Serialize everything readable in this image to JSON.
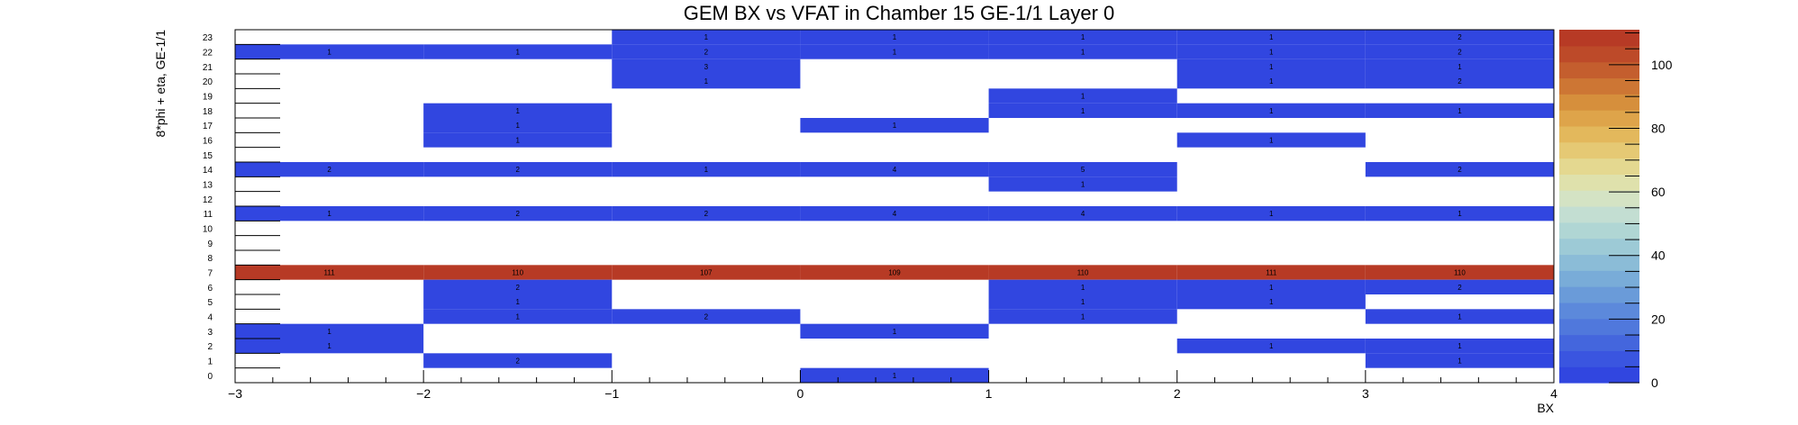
{
  "chart_data": {
    "type": "heatmap",
    "title": "GEM BX vs VFAT in Chamber 15 GE-1/1 Layer 0",
    "xlabel": "BX",
    "ylabel": "8*phi + eta, GE-1/1",
    "xlim": [
      -3,
      4
    ],
    "ylim": [
      0,
      24
    ],
    "x_tick_labels": [
      "−3",
      "−2",
      "−1",
      "0",
      "1",
      "2",
      "3",
      "4"
    ],
    "y_tick_labels": [
      "0",
      "1",
      "2",
      "3",
      "4",
      "5",
      "6",
      "7",
      "8",
      "9",
      "10",
      "11",
      "12",
      "13",
      "14",
      "15",
      "16",
      "17",
      "18",
      "19",
      "20",
      "21",
      "22",
      "23"
    ],
    "colorbar_ticks": [
      "0",
      "20",
      "40",
      "60",
      "80",
      "100"
    ],
    "zlim": [
      0,
      111
    ],
    "cells": [
      {
        "x": -2.5,
        "y": 22,
        "value": 1
      },
      {
        "x": -1.5,
        "y": 22,
        "value": 1
      },
      {
        "x": -0.5,
        "y": 23,
        "value": 1
      },
      {
        "x": -0.5,
        "y": 22,
        "value": 2
      },
      {
        "x": -0.5,
        "y": 21,
        "value": 3
      },
      {
        "x": -0.5,
        "y": 20,
        "value": 1
      },
      {
        "x": 0.5,
        "y": 23,
        "value": 1
      },
      {
        "x": 0.5,
        "y": 22,
        "value": 1
      },
      {
        "x": 1.5,
        "y": 23,
        "value": 1
      },
      {
        "x": 1.5,
        "y": 22,
        "value": 1
      },
      {
        "x": 1.5,
        "y": 19,
        "value": 1
      },
      {
        "x": 1.5,
        "y": 18,
        "value": 1
      },
      {
        "x": 2.5,
        "y": 23,
        "value": 1
      },
      {
        "x": 2.5,
        "y": 22,
        "value": 1
      },
      {
        "x": 2.5,
        "y": 21,
        "value": 1
      },
      {
        "x": 2.5,
        "y": 20,
        "value": 1
      },
      {
        "x": 2.5,
        "y": 18,
        "value": 1
      },
      {
        "x": 3.5,
        "y": 23,
        "value": 2
      },
      {
        "x": 3.5,
        "y": 22,
        "value": 2
      },
      {
        "x": 3.5,
        "y": 21,
        "value": 1
      },
      {
        "x": 3.5,
        "y": 20,
        "value": 2
      },
      {
        "x": 3.5,
        "y": 18,
        "value": 1
      },
      {
        "x": -1.5,
        "y": 18,
        "value": 1
      },
      {
        "x": -1.5,
        "y": 17,
        "value": 1
      },
      {
        "x": -1.5,
        "y": 16,
        "value": 1
      },
      {
        "x": 0.5,
        "y": 17,
        "value": 1
      },
      {
        "x": 2.5,
        "y": 16,
        "value": 1
      },
      {
        "x": -2.5,
        "y": 14,
        "value": 2
      },
      {
        "x": -1.5,
        "y": 14,
        "value": 2
      },
      {
        "x": -0.5,
        "y": 14,
        "value": 1
      },
      {
        "x": 0.5,
        "y": 14,
        "value": 4
      },
      {
        "x": 1.5,
        "y": 14,
        "value": 5
      },
      {
        "x": 3.5,
        "y": 14,
        "value": 2
      },
      {
        "x": 1.5,
        "y": 13,
        "value": 1
      },
      {
        "x": -2.5,
        "y": 11,
        "value": 1
      },
      {
        "x": -1.5,
        "y": 11,
        "value": 2
      },
      {
        "x": -0.5,
        "y": 11,
        "value": 2
      },
      {
        "x": 0.5,
        "y": 11,
        "value": 4
      },
      {
        "x": 1.5,
        "y": 11,
        "value": 4
      },
      {
        "x": 2.5,
        "y": 11,
        "value": 1
      },
      {
        "x": 3.5,
        "y": 11,
        "value": 1
      },
      {
        "x": -2.5,
        "y": 7,
        "value": 111
      },
      {
        "x": -1.5,
        "y": 7,
        "value": 110
      },
      {
        "x": -0.5,
        "y": 7,
        "value": 107
      },
      {
        "x": 0.5,
        "y": 7,
        "value": 109
      },
      {
        "x": 1.5,
        "y": 7,
        "value": 110
      },
      {
        "x": 2.5,
        "y": 7,
        "value": 111
      },
      {
        "x": 3.5,
        "y": 7,
        "value": 110
      },
      {
        "x": -1.5,
        "y": 6,
        "value": 2
      },
      {
        "x": -1.5,
        "y": 5,
        "value": 1
      },
      {
        "x": -1.5,
        "y": 4,
        "value": 1
      },
      {
        "x": -0.5,
        "y": 4,
        "value": 2
      },
      {
        "x": 1.5,
        "y": 6,
        "value": 1
      },
      {
        "x": 1.5,
        "y": 5,
        "value": 1
      },
      {
        "x": 1.5,
        "y": 4,
        "value": 1
      },
      {
        "x": 2.5,
        "y": 6,
        "value": 1
      },
      {
        "x": 2.5,
        "y": 5,
        "value": 1
      },
      {
        "x": 3.5,
        "y": 6,
        "value": 2
      },
      {
        "x": 3.5,
        "y": 4,
        "value": 1
      },
      {
        "x": -2.5,
        "y": 3,
        "value": 1
      },
      {
        "x": -2.5,
        "y": 2,
        "value": 1
      },
      {
        "x": 0.5,
        "y": 3,
        "value": 1
      },
      {
        "x": -1.5,
        "y": 1,
        "value": 2
      },
      {
        "x": 2.5,
        "y": 2,
        "value": 1
      },
      {
        "x": 3.5,
        "y": 2,
        "value": 1
      },
      {
        "x": 3.5,
        "y": 1,
        "value": 1
      },
      {
        "x": 0.5,
        "y": 0,
        "value": 1
      }
    ],
    "grid": false,
    "legend": "colorbar-right",
    "colors": {
      "low": "#3146e0",
      "high": "#c2452a",
      "palette": [
        "#3146e0",
        "#3a55e0",
        "#4466dd",
        "#5078dc",
        "#5c89db",
        "#6a9bd9",
        "#79acd8",
        "#8bbcd7",
        "#9dcad6",
        "#b0d6d4",
        "#c3ded2",
        "#d4e3c4",
        "#dfe1ac",
        "#e4d890",
        "#e5c974",
        "#e3b85c",
        "#dea44a",
        "#d68f3c",
        "#cd7634",
        "#c45e2e",
        "#bd4a29",
        "#b73a25"
      ]
    }
  }
}
